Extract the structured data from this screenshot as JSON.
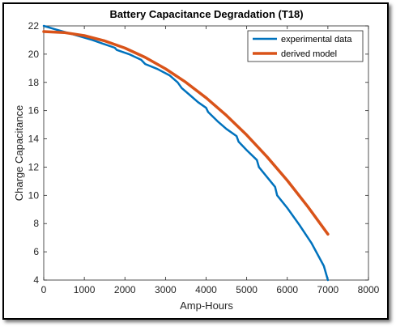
{
  "chart_data": {
    "type": "line",
    "title": "Battery Capacitance Degradation (T18)",
    "xlabel": "Amp-Hours",
    "ylabel": "Charge Capacitance",
    "xlim": [
      0,
      8000
    ],
    "ylim": [
      4,
      22
    ],
    "xticks": [
      "0",
      "1000",
      "2000",
      "3000",
      "4000",
      "5000",
      "6000",
      "7000",
      "8000"
    ],
    "yticks": [
      "4",
      "6",
      "8",
      "10",
      "12",
      "14",
      "16",
      "18",
      "20",
      "22"
    ],
    "grid": false,
    "legend_position": "top-right",
    "series": [
      {
        "name": "experimental data",
        "color": "#0072BD",
        "x": [
          0,
          300,
          600,
          900,
          1200,
          1500,
          1750,
          1800,
          2100,
          2400,
          2500,
          2800,
          3100,
          3300,
          3400,
          3600,
          3800,
          4000,
          4050,
          4300,
          4500,
          4750,
          4800,
          5000,
          5250,
          5300,
          5500,
          5700,
          5750,
          6000,
          6300,
          6600,
          6900,
          7000
        ],
        "y": [
          22.0,
          21.75,
          21.5,
          21.25,
          21.0,
          20.7,
          20.45,
          20.3,
          20.0,
          19.6,
          19.3,
          18.95,
          18.5,
          18.0,
          17.6,
          17.1,
          16.6,
          16.2,
          15.9,
          15.2,
          14.7,
          14.2,
          13.8,
          13.2,
          12.5,
          12.0,
          11.3,
          10.6,
          10.0,
          9.1,
          7.9,
          6.6,
          5.0,
          4.0
        ]
      },
      {
        "name": "derived model",
        "color": "#D95319",
        "x": [
          0,
          500,
          1000,
          1500,
          2000,
          2500,
          3000,
          3500,
          4000,
          4500,
          5000,
          5500,
          6000,
          6500,
          7000
        ],
        "y": [
          21.6,
          21.53,
          21.31,
          20.94,
          20.43,
          19.77,
          18.96,
          18.01,
          16.91,
          15.66,
          14.27,
          12.73,
          11.05,
          9.22,
          7.25
        ]
      }
    ]
  }
}
